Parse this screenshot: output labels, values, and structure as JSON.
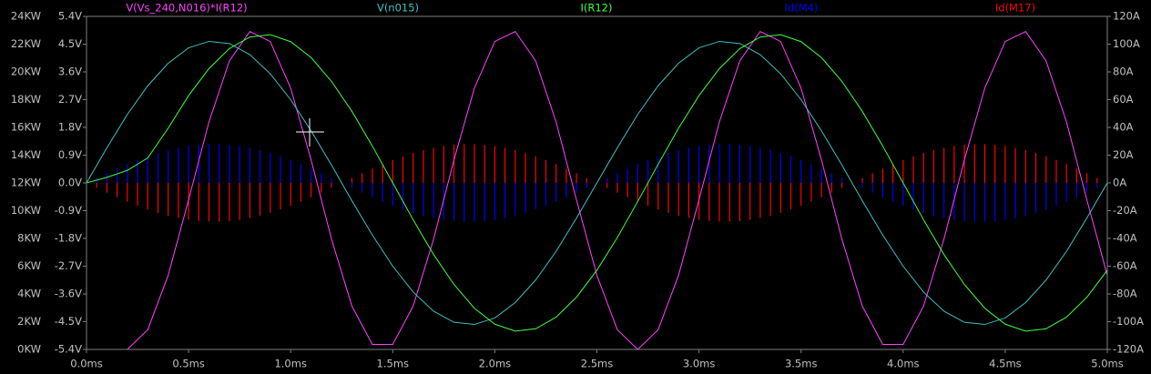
{
  "chart_data": {
    "type": "line",
    "x": [
      0,
      0.1,
      0.2,
      0.3,
      0.4,
      0.5,
      0.6,
      0.7,
      0.8,
      0.9,
      1,
      1.1,
      1.2,
      1.3,
      1.4,
      1.5,
      1.6,
      1.7,
      1.8,
      1.9,
      2,
      2.1,
      2.2,
      2.3,
      2.4,
      2.5,
      2.6,
      2.7,
      2.8,
      2.9,
      3,
      3.1,
      3.2,
      3.3,
      3.4,
      3.5,
      3.6,
      3.7,
      3.8,
      3.9,
      4,
      4.1,
      4.2,
      4.3,
      4.4,
      4.5,
      4.6,
      4.7,
      4.8,
      4.9,
      5
    ],
    "xlim": [
      0,
      5
    ],
    "xticks": [
      {
        "value": 0,
        "label": "0.0ms"
      },
      {
        "value": 0.5,
        "label": "0.5ms"
      },
      {
        "value": 1,
        "label": "1.0ms"
      },
      {
        "value": 1.5,
        "label": "1.5ms"
      },
      {
        "value": 2,
        "label": "2.0ms"
      },
      {
        "value": 2.5,
        "label": "2.5ms"
      },
      {
        "value": 3,
        "label": "3.0ms"
      },
      {
        "value": 3.5,
        "label": "3.5ms"
      },
      {
        "value": 4,
        "label": "4.0ms"
      },
      {
        "value": 4.5,
        "label": "4.5ms"
      },
      {
        "value": 5,
        "label": "5.0ms"
      }
    ],
    "ylim": [
      0,
      24
    ],
    "yticks": [
      {
        "value": 0,
        "label": "0KW"
      },
      {
        "value": 2,
        "label": "2KW"
      },
      {
        "value": 4,
        "label": "4KW"
      },
      {
        "value": 6,
        "label": "6KW"
      },
      {
        "value": 8,
        "label": "8KW"
      },
      {
        "value": 10,
        "label": "10KW"
      },
      {
        "value": 12,
        "label": "12KW"
      },
      {
        "value": 14,
        "label": "14KW"
      },
      {
        "value": 16,
        "label": "16KW"
      },
      {
        "value": 18,
        "label": "18KW"
      },
      {
        "value": 20,
        "label": "20KW"
      },
      {
        "value": 22,
        "label": "22KW"
      },
      {
        "value": 24,
        "label": "24KW"
      }
    ],
    "y3lim": [
      -5.4,
      5.4
    ],
    "y3ticks": [
      {
        "value": -5.4,
        "label": "-5.4V"
      },
      {
        "value": -4.5,
        "label": "-4.5V"
      },
      {
        "value": -3.6,
        "label": "-3.6V"
      },
      {
        "value": -2.7,
        "label": "-2.7V"
      },
      {
        "value": -1.8,
        "label": "-1.8V"
      },
      {
        "value": -0.9,
        "label": "-0.9V"
      },
      {
        "value": 0,
        "label": "0.0V"
      },
      {
        "value": 0.9,
        "label": "0.9V"
      },
      {
        "value": 1.8,
        "label": "1.8V"
      },
      {
        "value": 2.7,
        "label": "2.7V"
      },
      {
        "value": 3.6,
        "label": "3.6V"
      },
      {
        "value": 4.5,
        "label": "4.5V"
      },
      {
        "value": 5.4,
        "label": "5.4V"
      }
    ],
    "y2lim": [
      -120,
      120
    ],
    "y2ticks": [
      {
        "value": -120,
        "label": "-120A"
      },
      {
        "value": -100,
        "label": "-100A"
      },
      {
        "value": -80,
        "label": "-80A"
      },
      {
        "value": -60,
        "label": "-60A"
      },
      {
        "value": -40,
        "label": "-40A"
      },
      {
        "value": -20,
        "label": "-20A"
      },
      {
        "value": 0,
        "label": "0A"
      },
      {
        "value": 20,
        "label": "20A"
      },
      {
        "value": 40,
        "label": "40A"
      },
      {
        "value": 60,
        "label": "60A"
      },
      {
        "value": 80,
        "label": "80A"
      },
      {
        "value": 100,
        "label": "100A"
      },
      {
        "value": 120,
        "label": "120A"
      }
    ],
    "series": [
      {
        "name": "V(Vs_240,N016)*I(R12)",
        "color": "#ff40ff",
        "axis": "y",
        "values": [
          0,
          0,
          0,
          1.42,
          5.34,
          10.78,
          16.4,
          20.8,
          22.91,
          22.19,
          18.83,
          13.66,
          7.95,
          3.12,
          0.36,
          0.36,
          3.12,
          7.95,
          13.66,
          18.83,
          22.19,
          22.91,
          20.8,
          16.4,
          10.78,
          5.34,
          1.42,
          0,
          1.42,
          5.34,
          10.78,
          16.4,
          20.8,
          22.91,
          22.19,
          18.83,
          13.66,
          7.95,
          3.12,
          0.36,
          0.36,
          3.12,
          7.95,
          13.66,
          18.83,
          22.19,
          22.91,
          20.8,
          16.4,
          10.78,
          5.34
        ]
      },
      {
        "name": "V(n015)",
        "color": "#40c0c0",
        "axis": "y3",
        "values": [
          0,
          1.14,
          2.22,
          3.15,
          3.88,
          4.38,
          4.59,
          4.52,
          4.16,
          3.54,
          2.7,
          1.69,
          0.58,
          -0.58,
          -1.69,
          -2.7,
          -3.54,
          -4.16,
          -4.52,
          -4.59,
          -4.38,
          -3.88,
          -3.15,
          -2.22,
          -1.14,
          0,
          1.14,
          2.22,
          3.15,
          3.88,
          4.38,
          4.59,
          4.52,
          4.16,
          3.54,
          2.7,
          1.69,
          0.58,
          -0.58,
          -1.69,
          -2.7,
          -3.54,
          -4.16,
          -4.52,
          -4.59,
          -4.38,
          -3.88,
          -3.15,
          -2.22,
          -1.14,
          0
        ]
      },
      {
        "name": "I(R12)",
        "color": "#40ff40",
        "axis": "y2",
        "values": [
          0,
          4,
          9,
          18,
          39.4,
          62.9,
          82.4,
          96.8,
          105.1,
          106.8,
          101.8,
          90.3,
          73.2,
          51.6,
          26.6,
          0,
          -26.6,
          -51.6,
          -73.2,
          -90.3,
          -101.8,
          -106.8,
          -105.1,
          -96.8,
          -82.4,
          -62.9,
          -39.4,
          -13.4,
          13.4,
          39.4,
          62.9,
          82.4,
          96.8,
          105.1,
          106.8,
          101.8,
          90.3,
          73.2,
          51.6,
          26.6,
          0,
          -26.6,
          -51.6,
          -73.2,
          -90.3,
          -101.8,
          -106.8,
          -105.1,
          -96.8,
          -82.4,
          -62.9
        ]
      },
      {
        "name": "Id(M4)",
        "color": "#0000ff",
        "axis": "y2",
        "type": "spikes",
        "x": [
          0,
          0.05,
          0.1,
          0.15,
          0.2,
          0.25,
          0.3,
          0.35,
          0.4,
          0.45,
          0.5,
          0.55,
          0.6,
          0.65,
          0.7,
          0.75,
          0.8,
          0.85,
          0.9,
          0.95,
          1,
          1.05,
          1.1,
          1.15,
          1.2,
          1.25,
          1.3,
          1.35,
          1.4,
          1.45,
          1.5,
          1.55,
          1.6,
          1.65,
          1.7,
          1.75,
          1.8,
          1.85,
          1.9,
          1.95,
          2,
          2.05,
          2.1,
          2.15,
          2.2,
          2.25,
          2.3,
          2.35,
          2.4,
          2.45,
          2.5,
          2.55,
          2.6,
          2.65,
          2.7,
          2.75,
          2.8,
          2.85,
          2.9,
          2.95,
          3,
          3.05,
          3.1,
          3.15,
          3.2,
          3.25,
          3.3,
          3.35,
          3.4,
          3.45,
          3.5,
          3.55,
          3.6,
          3.65,
          3.7,
          3.75,
          3.8,
          3.85,
          3.9,
          3.95,
          4,
          4.05,
          4.1,
          4.15,
          4.2,
          4.25,
          4.3,
          4.35,
          4.4,
          4.45,
          4.5,
          4.55,
          4.6,
          4.65,
          4.7,
          4.75,
          4.8,
          4.85,
          4.9,
          4.95,
          5
        ],
        "values": [
          0,
          3.5,
          7,
          10.3,
          13.5,
          16.5,
          19.2,
          21.6,
          23.6,
          25.3,
          26.6,
          27.5,
          27.9,
          27.9,
          27.5,
          26.6,
          25.3,
          23.6,
          21.6,
          19.2,
          16.5,
          13.5,
          10.3,
          7,
          3.5,
          0,
          -3.5,
          -7,
          -10.3,
          -13.5,
          -16.5,
          -19.2,
          -21.6,
          -23.6,
          -25.3,
          -26.6,
          -27.5,
          -27.9,
          -27.9,
          -27.5,
          -26.6,
          -25.3,
          -23.6,
          -21.6,
          -19.2,
          -16.5,
          -13.5,
          -10.3,
          -7,
          -3.5,
          0,
          3.5,
          7,
          10.3,
          13.5,
          16.5,
          19.2,
          21.6,
          23.6,
          25.3,
          26.6,
          27.5,
          27.9,
          27.9,
          27.5,
          26.6,
          25.3,
          23.6,
          21.6,
          19.2,
          16.5,
          13.5,
          10.3,
          7,
          3.5,
          0,
          -3.5,
          -7,
          -10.3,
          -13.5,
          -16.5,
          -19.2,
          -21.6,
          -23.6,
          -25.3,
          -26.6,
          -27.5,
          -27.9,
          -27.9,
          -27.5,
          -26.6,
          -25.3,
          -23.6,
          -21.6,
          -19.2,
          -16.5,
          -13.5,
          -10.3,
          -7,
          -3.5,
          0
        ]
      },
      {
        "name": "Id(M17)",
        "color": "#ff0000",
        "axis": "y2",
        "type": "spikes",
        "x": [
          0,
          0.05,
          0.1,
          0.15,
          0.2,
          0.25,
          0.3,
          0.35,
          0.4,
          0.45,
          0.5,
          0.55,
          0.6,
          0.65,
          0.7,
          0.75,
          0.8,
          0.85,
          0.9,
          0.95,
          1,
          1.05,
          1.1,
          1.15,
          1.2,
          1.25,
          1.3,
          1.35,
          1.4,
          1.45,
          1.5,
          1.55,
          1.6,
          1.65,
          1.7,
          1.75,
          1.8,
          1.85,
          1.9,
          1.95,
          2,
          2.05,
          2.1,
          2.15,
          2.2,
          2.25,
          2.3,
          2.35,
          2.4,
          2.45,
          2.5,
          2.55,
          2.6,
          2.65,
          2.7,
          2.75,
          2.8,
          2.85,
          2.9,
          2.95,
          3,
          3.05,
          3.1,
          3.15,
          3.2,
          3.25,
          3.3,
          3.35,
          3.4,
          3.45,
          3.5,
          3.55,
          3.6,
          3.65,
          3.7,
          3.75,
          3.8,
          3.85,
          3.9,
          3.95,
          4,
          4.05,
          4.1,
          4.15,
          4.2,
          4.25,
          4.3,
          4.35,
          4.4,
          4.45,
          4.5,
          4.55,
          4.6,
          4.65,
          4.7,
          4.75,
          4.8,
          4.85,
          4.9,
          4.95,
          5
        ],
        "values": [
          0,
          -3.5,
          -7,
          -10.3,
          -13.5,
          -16.5,
          -19.2,
          -21.6,
          -23.6,
          -25.3,
          -26.6,
          -27.5,
          -27.9,
          -27.9,
          -27.5,
          -26.6,
          -25.3,
          -23.6,
          -21.6,
          -19.2,
          -16.5,
          -13.5,
          -10.3,
          -7,
          -3.5,
          0,
          3.5,
          7,
          10.3,
          13.5,
          16.5,
          19.2,
          21.6,
          23.6,
          25.3,
          26.6,
          27.5,
          27.9,
          27.9,
          27.5,
          26.6,
          25.3,
          23.6,
          21.6,
          19.2,
          16.5,
          13.5,
          10.3,
          7,
          3.5,
          0,
          -3.5,
          -7,
          -10.3,
          -13.5,
          -16.5,
          -19.2,
          -21.6,
          -23.6,
          -25.3,
          -26.6,
          -27.5,
          -27.9,
          -27.9,
          -27.5,
          -26.6,
          -25.3,
          -23.6,
          -21.6,
          -19.2,
          -16.5,
          -13.5,
          -10.3,
          -7,
          -3.5,
          0,
          3.5,
          7,
          10.3,
          13.5,
          16.5,
          19.2,
          21.6,
          23.6,
          25.3,
          26.6,
          27.5,
          27.9,
          27.9,
          27.5,
          26.6,
          25.3,
          23.6,
          21.6,
          19.2,
          16.5,
          13.5,
          10.3,
          7,
          3.5,
          0
        ]
      }
    ]
  }
}
